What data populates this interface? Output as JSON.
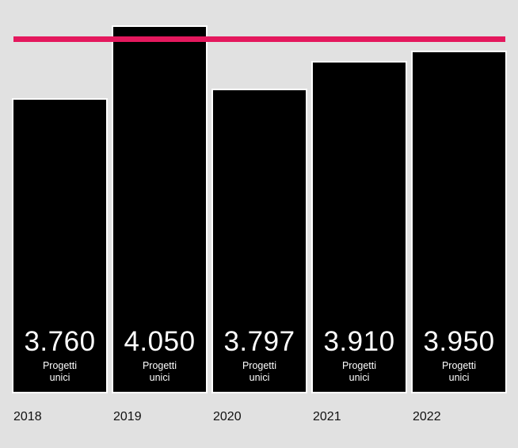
{
  "colors": {
    "background": "#e1e1e1",
    "bar": "#000000",
    "reference_line": "#e4185d",
    "text_on_bar": "#ffffff"
  },
  "chart_data": {
    "type": "bar",
    "categories": [
      "2018",
      "2019",
      "2020",
      "2021",
      "2022"
    ],
    "values": [
      3760,
      4050,
      3797,
      3910,
      3950
    ],
    "value_labels": [
      "3.760",
      "4.050",
      "3.797",
      "3.910",
      "3.950"
    ],
    "bar_label_line1": "Progetti",
    "bar_label_line2": "unici",
    "reference_value": 4000,
    "ylim": [
      2600,
      4050
    ],
    "grid": false
  }
}
